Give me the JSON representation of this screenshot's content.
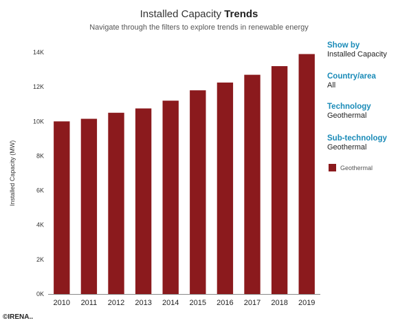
{
  "header": {
    "title_regular": "Installed Capacity",
    "title_bold": "Trends",
    "subtitle": "Navigate through the filters to explore trends in renewable energy"
  },
  "filters": [
    {
      "label": "Show by",
      "value": "Installed Capacity"
    },
    {
      "label": "Country/area",
      "value": "All"
    },
    {
      "label": "Technology",
      "value": "Geothermal"
    },
    {
      "label": "Sub-technology",
      "value": "Geothermal"
    }
  ],
  "legend": {
    "label": "Geothermal",
    "color": "#8b1a1d"
  },
  "copyright": "©IRENA..",
  "chart_data": {
    "type": "bar",
    "ylabel": "Installed Capacity (MW)",
    "xlabel": "",
    "ylim": [
      0,
      14000
    ],
    "yticks": [
      0,
      2000,
      4000,
      6000,
      8000,
      10000,
      12000,
      14000
    ],
    "ytick_labels": [
      "0K",
      "2K",
      "4K",
      "6K",
      "8K",
      "10K",
      "12K",
      "14K"
    ],
    "grid": false,
    "categories": [
      "2010",
      "2011",
      "2012",
      "2013",
      "2014",
      "2015",
      "2016",
      "2017",
      "2018",
      "2019"
    ],
    "series": [
      {
        "name": "Geothermal",
        "color": "#8b1a1d",
        "values": [
          10000,
          10150,
          10500,
          10750,
          11200,
          11800,
          12250,
          12700,
          13200,
          13900
        ]
      }
    ]
  }
}
